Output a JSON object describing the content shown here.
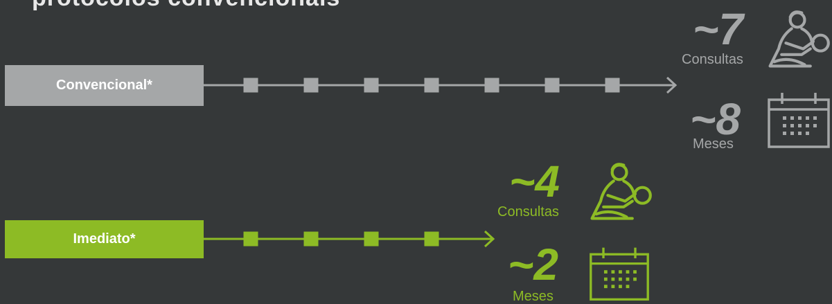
{
  "title": "protocolos convencionais",
  "colors": {
    "background": "#353839",
    "conventional": "#a5a7a8",
    "immediate": "#8dbb25",
    "title_text": "#e8e8e8"
  },
  "conventional": {
    "label": "Convencional*",
    "steps": 7,
    "consultations": {
      "value": "~7",
      "label": "Consultas",
      "icon": "patient-care-icon"
    },
    "duration": {
      "value": "~8",
      "label": "Meses",
      "icon": "calendar-icon"
    }
  },
  "immediate": {
    "label": "Imediato*",
    "steps": 4,
    "consultations": {
      "value": "~4",
      "label": "Consultas",
      "icon": "patient-care-icon"
    },
    "duration": {
      "value": "~2",
      "label": "Meses",
      "icon": "calendar-icon"
    }
  }
}
